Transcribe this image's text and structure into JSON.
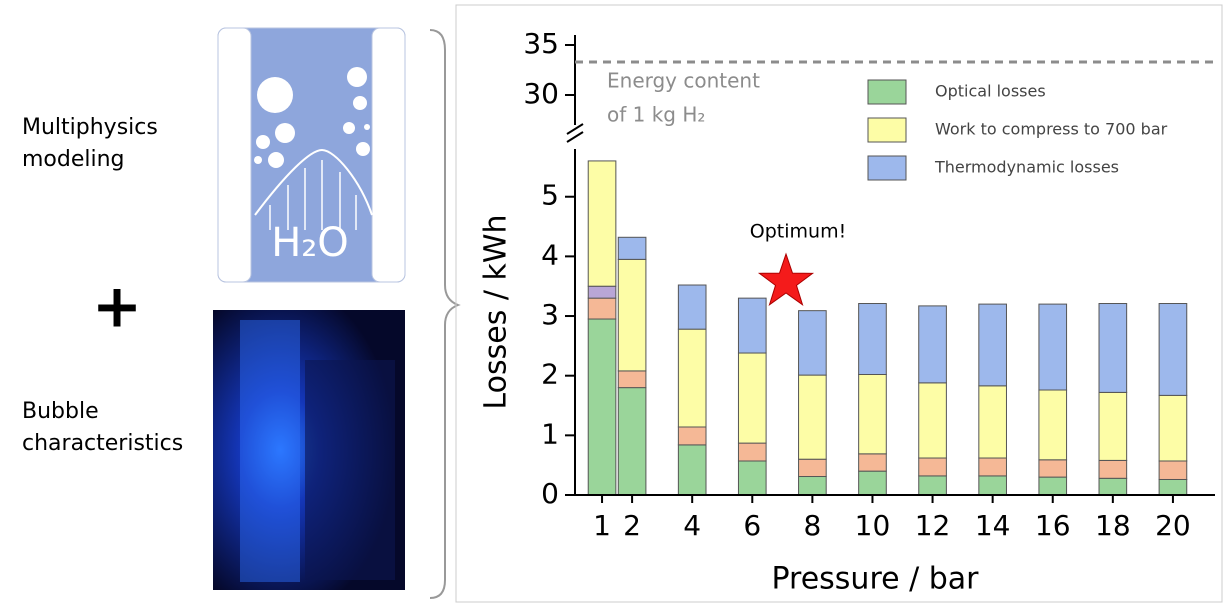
{
  "figure": {
    "top_label": "Multiphysics modeling",
    "plus": "+",
    "bottom_label": "Bubble characteristics",
    "illustration_label": "H₂O"
  },
  "chart_data": {
    "type": "stacked_bar",
    "x": [
      1,
      2,
      4,
      6,
      8,
      10,
      12,
      14,
      16,
      18,
      20
    ],
    "xlim": [
      0.1,
      21.4
    ],
    "xticks": [
      1,
      2,
      4,
      6,
      8,
      10,
      12,
      14,
      16,
      18,
      20
    ],
    "xlabel": "Pressure / bar",
    "ylabel": "Losses / kWh",
    "ylim": [
      0,
      5.8
    ],
    "yticks": [
      0,
      1,
      2,
      3,
      4,
      5
    ],
    "upper_ylim": [
      27,
      36
    ],
    "upper_yticks": [
      30,
      35
    ],
    "reference_line": {
      "value": 33.3,
      "label_lines": [
        "Energy content",
        "of 1 kg H₂"
      ],
      "color": "#8c8c8c"
    },
    "annotation": "Optimum!",
    "legend": "upper right",
    "series": [
      {
        "name": "Optical losses",
        "color": "#9ad59a",
        "values": [
          2.95,
          1.8,
          0.84,
          0.57,
          0.31,
          0.4,
          0.32,
          0.32,
          0.3,
          0.28,
          0.26
        ]
      },
      {
        "color": "#f5b896",
        "values": [
          0.35,
          0.28,
          0.3,
          0.3,
          0.29,
          0.29,
          0.3,
          0.3,
          0.29,
          0.3,
          0.31
        ]
      },
      {
        "color": "#b9a6d6",
        "values": [
          0.2,
          null,
          null,
          null,
          null,
          null,
          null,
          null,
          null,
          null,
          null
        ]
      },
      {
        "name": "Work to compress to 700 bar",
        "color": "#fdfda6",
        "values": [
          2.1,
          1.87,
          1.64,
          1.51,
          1.41,
          1.33,
          1.26,
          1.21,
          1.17,
          1.14,
          1.1
        ]
      },
      {
        "name": "Thermodynamic losses",
        "color": "#9db8ec",
        "values": [
          null,
          0.37,
          0.74,
          0.92,
          1.08,
          1.19,
          1.29,
          1.37,
          1.44,
          1.49,
          1.54
        ]
      }
    ]
  }
}
